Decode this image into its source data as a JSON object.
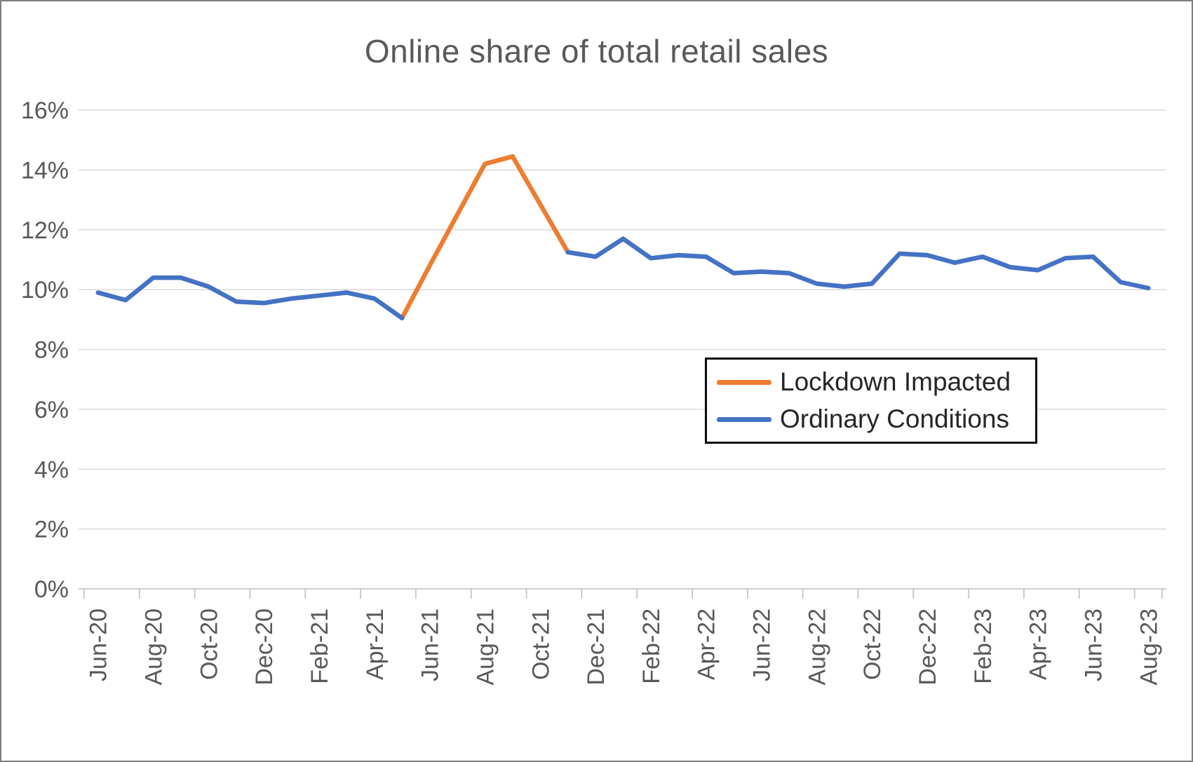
{
  "chart_data": {
    "type": "line",
    "title": "Online share of total retail sales",
    "xlabel": "",
    "ylabel": "",
    "y_min": 0,
    "y_max": 16,
    "y_step": 2,
    "y_ticks": [
      "0%",
      "2%",
      "4%",
      "6%",
      "8%",
      "10%",
      "12%",
      "14%",
      "16%"
    ],
    "grid": true,
    "legend_position": "middle-right",
    "x_label_interval": 2,
    "x_tick_labels": [
      "Jun-20",
      "Aug-20",
      "Oct-20",
      "Dec-20",
      "Feb-21",
      "Apr-21",
      "Jun-21",
      "Aug-21",
      "Oct-21",
      "Dec-21",
      "Feb-22",
      "Apr-22",
      "Jun-22",
      "Aug-22",
      "Oct-22",
      "Dec-22",
      "Feb-23",
      "Apr-23",
      "Jun-23",
      "Aug-23"
    ],
    "categories": [
      "Jun-20",
      "Jul-20",
      "Aug-20",
      "Sep-20",
      "Oct-20",
      "Nov-20",
      "Dec-20",
      "Jan-21",
      "Feb-21",
      "Mar-21",
      "Apr-21",
      "May-21",
      "Jun-21",
      "Jul-21",
      "Aug-21",
      "Sep-21",
      "Oct-21",
      "Nov-21",
      "Dec-21",
      "Jan-22",
      "Feb-22",
      "Mar-22",
      "Apr-22",
      "May-22",
      "Jun-22",
      "Jul-22",
      "Aug-22",
      "Sep-22",
      "Oct-22",
      "Nov-22",
      "Dec-22",
      "Jan-23",
      "Feb-23",
      "Mar-23",
      "Apr-23",
      "May-23",
      "Jun-23",
      "Jul-23",
      "Aug-23"
    ],
    "series": [
      {
        "name": "Lockdown Impacted",
        "color": "#ED7D31",
        "values": [
          null,
          null,
          null,
          null,
          null,
          null,
          null,
          null,
          null,
          null,
          null,
          9.05,
          10.8,
          12.5,
          14.2,
          14.45,
          12.85,
          11.25,
          null,
          null,
          null,
          null,
          null,
          null,
          null,
          null,
          null,
          null,
          null,
          null,
          null,
          null,
          null,
          null,
          null,
          null,
          null,
          null,
          null
        ]
      },
      {
        "name": "Ordinary Conditions",
        "color": "#4472C4",
        "values": [
          9.9,
          9.65,
          10.4,
          10.4,
          10.1,
          9.6,
          9.55,
          9.7,
          9.8,
          9.9,
          9.7,
          9.05,
          null,
          null,
          null,
          null,
          null,
          11.25,
          11.1,
          11.7,
          11.05,
          11.15,
          11.1,
          10.55,
          10.6,
          10.55,
          10.2,
          10.1,
          10.2,
          11.2,
          11.15,
          10.9,
          11.1,
          10.75,
          10.65,
          11.05,
          11.1,
          10.25,
          10.05
        ]
      }
    ]
  }
}
